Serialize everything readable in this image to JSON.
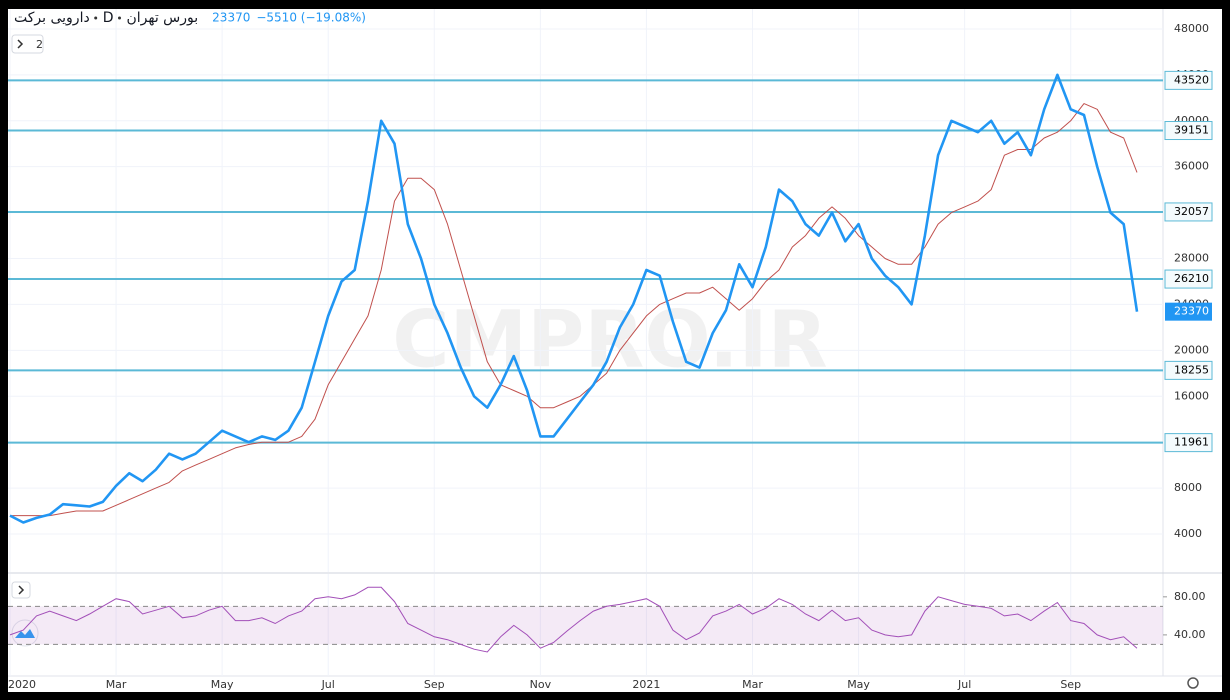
{
  "chart_data": {
    "type": "line",
    "title": "دارویی برکت",
    "interval": "D",
    "exchange": "بورس تهران",
    "last": 23370,
    "change": "−5510 (−19.08%)",
    "indicator_count": "2",
    "watermark": "CMPRO.IR",
    "categories": [
      "2020",
      null,
      null,
      null,
      null,
      null,
      null,
      null,
      "Mar",
      null,
      null,
      null,
      null,
      null,
      null,
      null,
      "May",
      null,
      null,
      null,
      null,
      null,
      null,
      null,
      "Jul",
      null,
      null,
      null,
      null,
      null,
      null,
      null,
      "Sep",
      null,
      null,
      null,
      null,
      null,
      null,
      null,
      "Nov",
      null,
      null,
      null,
      null,
      null,
      null,
      null,
      "2021",
      null,
      null,
      null,
      null,
      null,
      null,
      null,
      "Mar",
      null,
      null,
      null,
      null,
      null,
      null,
      null,
      "May",
      null,
      null,
      null,
      null,
      null,
      null,
      null,
      "Jul",
      null,
      null,
      null,
      null,
      null,
      null,
      null,
      "Sep",
      null,
      null,
      null,
      null,
      null
    ],
    "series": [
      {
        "color": "#2196f3",
        "values": [
          5600,
          5000,
          5400,
          5700,
          6600,
          6500,
          6400,
          6800,
          8200,
          9300,
          8600,
          9600,
          11000,
          10500,
          11000,
          12000,
          13000,
          12500,
          12000,
          12500,
          12200,
          13000,
          15000,
          19000,
          23000,
          26000,
          27000,
          33000,
          40000,
          38000,
          31000,
          28000,
          24000,
          21500,
          18500,
          16000,
          15000,
          17000,
          19500,
          16500,
          12500,
          12500,
          14000,
          15500,
          17000,
          19000,
          22000,
          24000,
          27000,
          26500,
          22500,
          19000,
          18500,
          21500,
          23500,
          27500,
          25500,
          29000,
          34000,
          33000,
          31000,
          30000,
          32000,
          29500,
          31000,
          28000,
          26500,
          25500,
          24000,
          30000,
          37000,
          40000,
          39500,
          39000,
          40000,
          38000,
          39000,
          37000,
          41000,
          44000,
          41000,
          40500,
          36000,
          32000,
          31000,
          23370
        ]
      },
      {
        "color": "#c0504d",
        "values": [
          5600,
          5600,
          5600,
          5600,
          5800,
          6000,
          6000,
          6000,
          6500,
          7000,
          7500,
          8000,
          8500,
          9500,
          10000,
          10500,
          11000,
          11500,
          11800,
          12000,
          12000,
          12000,
          12500,
          14000,
          17000,
          19000,
          21000,
          23000,
          27000,
          33000,
          35000,
          35000,
          34000,
          31000,
          27000,
          23000,
          19000,
          17000,
          16500,
          16000,
          15000,
          15000,
          15500,
          16000,
          17000,
          18000,
          20000,
          21500,
          23000,
          24000,
          24500,
          25000,
          25000,
          25500,
          24500,
          23500,
          24500,
          26000,
          27000,
          29000,
          30000,
          31500,
          32500,
          31500,
          30000,
          29000,
          28000,
          27500,
          27500,
          29000,
          31000,
          32000,
          32500,
          33000,
          34000,
          37000,
          37500,
          37500,
          38500,
          39000,
          40000,
          41500,
          41000,
          39000,
          38500,
          35500
        ]
      }
    ],
    "levels": [
      43520,
      39151,
      32057,
      26210,
      18255,
      11961
    ],
    "level_color": "#5bb9d6",
    "ylim": [
      690,
      49650
    ],
    "yticks": [
      4000,
      8000,
      12000,
      16000,
      20000,
      24000,
      28000,
      32000,
      36000,
      40000,
      44000,
      48000
    ],
    "grid": true,
    "rsi": {
      "color": "#a24fb8",
      "band": [
        30,
        70
      ],
      "ylim": [
        1,
        104
      ],
      "yticks": [
        {
          "value": 40,
          "label": "40.00"
        },
        {
          "value": 80,
          "label": "80.00"
        }
      ],
      "values": [
        40,
        45,
        60,
        65,
        60,
        55,
        62,
        70,
        78,
        75,
        62,
        66,
        70,
        58,
        60,
        66,
        70,
        55,
        55,
        58,
        52,
        60,
        65,
        78,
        80,
        78,
        82,
        90,
        90,
        75,
        52,
        45,
        38,
        35,
        30,
        25,
        22,
        38,
        50,
        40,
        26,
        32,
        44,
        55,
        65,
        70,
        72,
        75,
        78,
        70,
        45,
        35,
        42,
        60,
        65,
        72,
        62,
        68,
        78,
        72,
        62,
        55,
        66,
        55,
        58,
        45,
        40,
        38,
        40,
        65,
        80,
        76,
        72,
        70,
        68,
        60,
        62,
        55,
        65,
        74,
        55,
        52,
        40,
        35,
        38,
        26
      ]
    }
  }
}
